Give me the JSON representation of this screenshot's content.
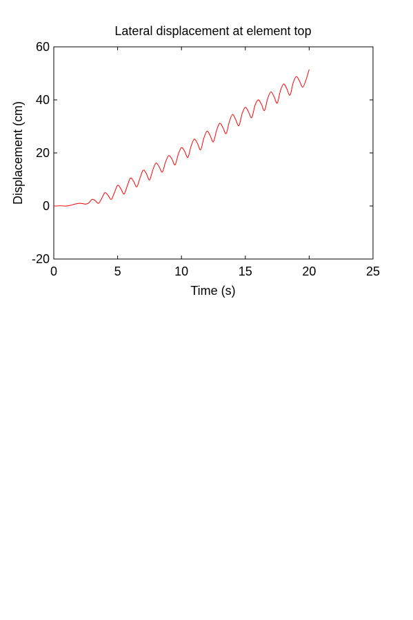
{
  "chart_data": {
    "type": "line",
    "title": "Lateral displacement at element top",
    "xlabel": "Time (s)",
    "ylabel": "Displacement (cm)",
    "xlim": [
      0,
      25
    ],
    "ylim": [
      -20,
      60
    ],
    "xticks": [
      0,
      5,
      10,
      15,
      20,
      25
    ],
    "yticks": [
      -20,
      0,
      20,
      40,
      60
    ],
    "xtick_labels": [
      "0",
      "5",
      "10",
      "15",
      "20",
      "25"
    ],
    "ytick_labels": [
      "-20",
      "0",
      "20",
      "40",
      "60"
    ],
    "grid": false,
    "line_color": "#ff0000",
    "frame_color": "#000000",
    "series": [
      {
        "x": [
          0.0,
          0.25,
          0.5,
          0.75,
          1.0,
          1.25,
          1.5,
          1.75,
          2.0,
          2.25,
          2.5,
          2.75,
          3.0,
          3.25,
          3.5,
          3.75,
          4.0,
          4.25,
          4.5,
          4.75,
          5.0,
          5.25,
          5.5,
          5.75,
          6.0,
          6.25,
          6.5,
          6.75,
          7.0,
          7.25,
          7.5,
          7.75,
          8.0,
          8.25,
          8.5,
          8.75,
          9.0,
          9.25,
          9.5,
          9.75,
          10.0,
          10.25,
          10.5,
          10.75,
          11.0,
          11.25,
          11.5,
          11.75,
          12.0,
          12.25,
          12.5,
          12.75,
          13.0,
          13.25,
          13.5,
          13.75,
          14.0,
          14.25,
          14.5,
          14.75,
          15.0,
          15.25,
          15.5,
          15.75,
          16.0,
          16.25,
          16.5,
          16.75,
          17.0,
          17.25,
          17.5,
          17.75,
          18.0,
          18.25,
          18.5,
          18.75,
          19.0,
          19.25,
          19.5,
          19.75,
          20.0
        ],
        "y": [
          0.0,
          0.0,
          0.1,
          0.0,
          0.0,
          0.2,
          0.5,
          0.8,
          1.0,
          0.9,
          0.7,
          1.2,
          2.5,
          2.0,
          1.0,
          2.8,
          5.0,
          4.0,
          2.5,
          5.0,
          7.8,
          6.5,
          4.5,
          7.5,
          10.5,
          9.3,
          7.2,
          10.5,
          13.5,
          12.2,
          9.8,
          13.5,
          16.2,
          14.8,
          12.8,
          16.5,
          19.0,
          17.7,
          15.5,
          19.5,
          22.0,
          20.6,
          18.3,
          22.5,
          25.2,
          23.6,
          21.2,
          25.5,
          28.2,
          26.5,
          24.2,
          28.5,
          31.2,
          29.5,
          27.3,
          31.8,
          34.5,
          32.5,
          30.3,
          34.8,
          37.2,
          35.5,
          33.3,
          37.8,
          40.0,
          38.5,
          36.0,
          40.5,
          43.0,
          41.2,
          38.8,
          43.5,
          46.0,
          44.2,
          41.8,
          46.5,
          48.8,
          47.0,
          44.8,
          47.5,
          51.5
        ]
      }
    ]
  }
}
